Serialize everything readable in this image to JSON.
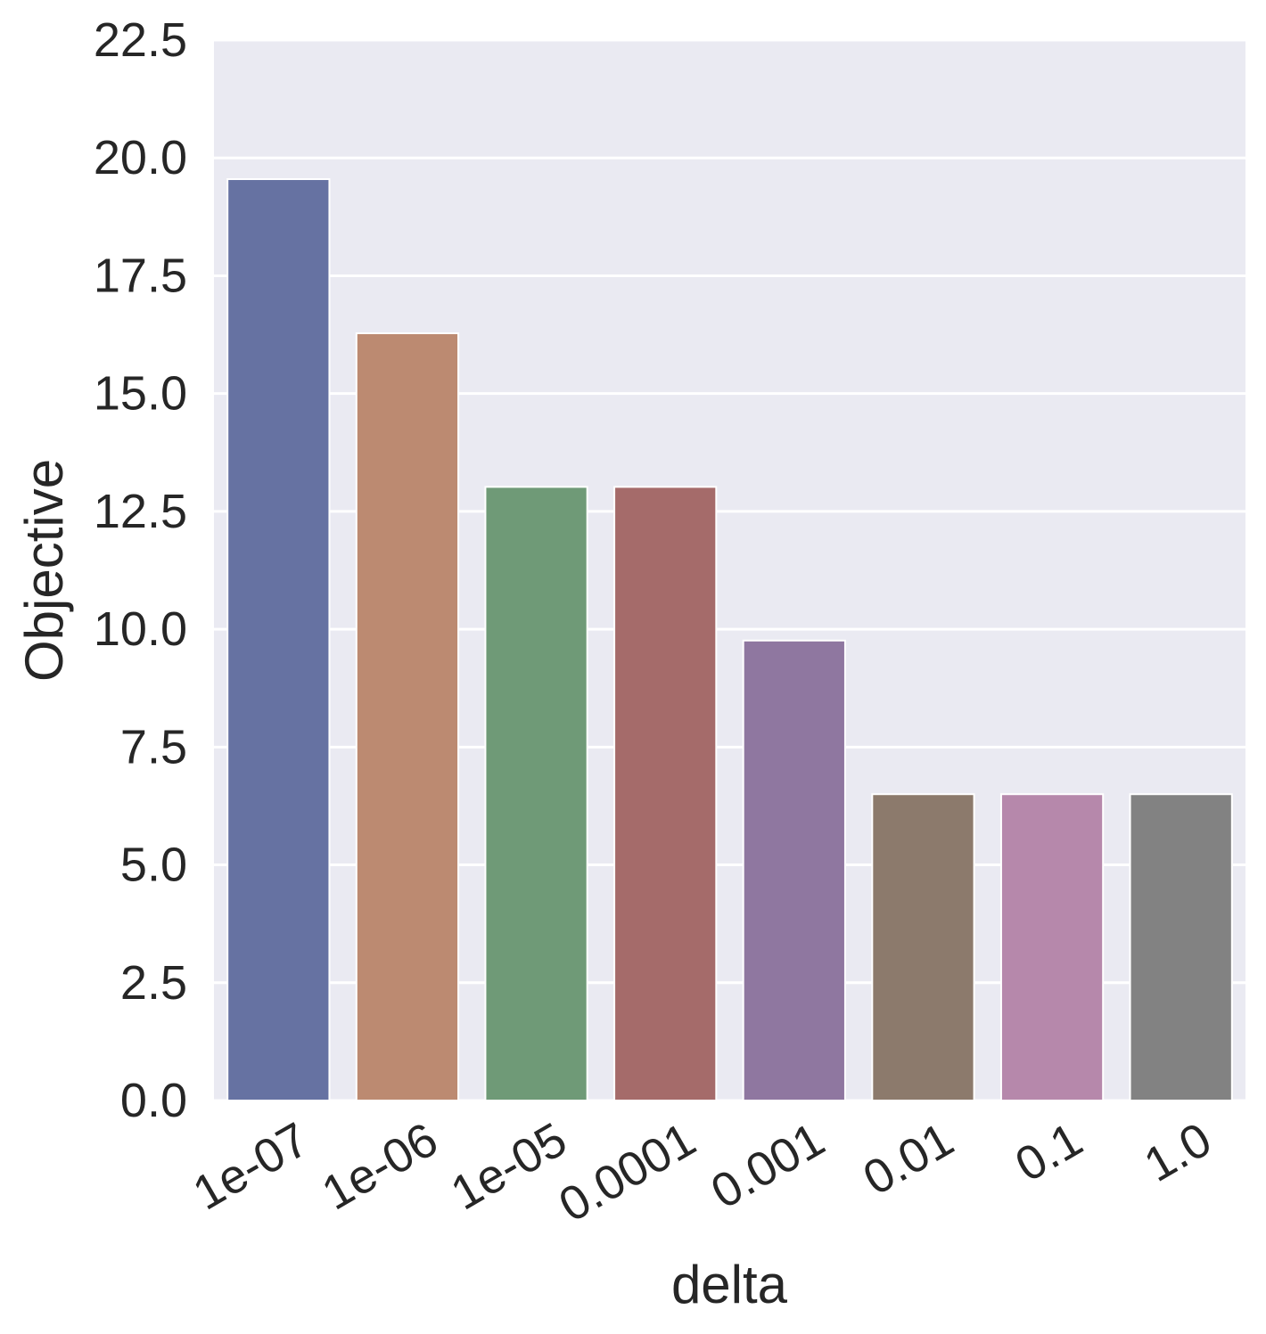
{
  "chart_data": {
    "type": "bar",
    "categories": [
      "1e-07",
      "1e-06",
      "1e-05",
      "0.0001",
      "0.001",
      "0.01",
      "0.1",
      "1.0"
    ],
    "values": [
      19.55,
      16.28,
      13.02,
      13.02,
      9.76,
      6.5,
      6.5,
      6.5
    ],
    "colors": [
      "#6672a2",
      "#bc8a71",
      "#6f9a77",
      "#a56b6a",
      "#8f77a0",
      "#8c7a6c",
      "#b688ab",
      "#828282"
    ],
    "xlabel": "delta",
    "ylabel": "Objective",
    "ylim": [
      0,
      22.5
    ],
    "yticks": [
      "0.0",
      "2.5",
      "5.0",
      "7.5",
      "10.0",
      "12.5",
      "15.0",
      "17.5",
      "20.0",
      "22.5"
    ],
    "grid": true,
    "background_color": "#eaeaf2",
    "grid_color": "#ffffff"
  }
}
